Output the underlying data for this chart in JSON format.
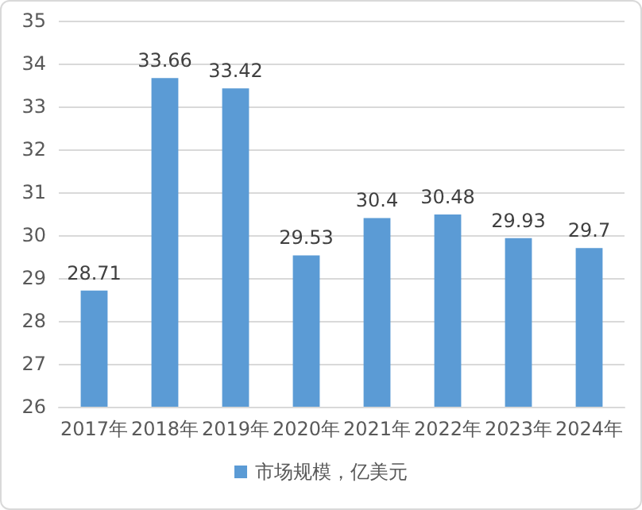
{
  "chart_data": {
    "type": "bar",
    "categories": [
      "2017年",
      "2018年",
      "2019年",
      "2020年",
      "2021年",
      "2022年",
      "2023年",
      "2024年"
    ],
    "series": [
      {
        "name": "市场规模，亿美元",
        "color": "#5b9bd5",
        "values": [
          28.71,
          33.66,
          33.42,
          29.53,
          30.4,
          30.48,
          29.93,
          29.7
        ]
      }
    ],
    "ylim": [
      26,
      35
    ],
    "yticks": [
      26,
      27,
      28,
      29,
      30,
      31,
      32,
      33,
      34,
      35
    ],
    "grid": "y",
    "legend": "bottom",
    "data_labels": true
  }
}
